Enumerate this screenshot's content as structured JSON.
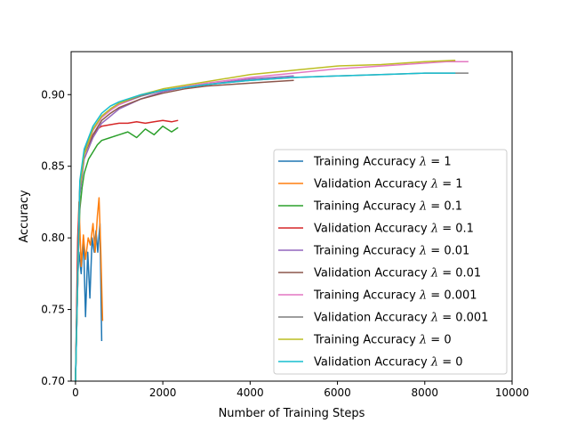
{
  "chart_data": {
    "type": "line",
    "title": "",
    "xlabel": "Number of Training Steps",
    "ylabel": "Accuracy",
    "xlim": [
      -100,
      10000
    ],
    "ylim": [
      0.7,
      0.93
    ],
    "x_ticks": [
      0,
      2000,
      4000,
      6000,
      8000,
      10000
    ],
    "x_tick_labels": [
      "0",
      "2000",
      "4000",
      "6000",
      "8000",
      "10000"
    ],
    "y_ticks": [
      0.7,
      0.75,
      0.8,
      0.85,
      0.9
    ],
    "y_tick_labels": [
      "0.70",
      "0.75",
      "0.80",
      "0.85",
      "0.90"
    ],
    "grid": false,
    "legend_position": "lower-right",
    "series": [
      {
        "label": "Training Accuracy λ = 1",
        "legend_prefix": "Training Accuracy",
        "lambda": "1",
        "color": "#1f77b4",
        "points": [
          [
            0,
            0.7
          ],
          [
            40,
            0.765
          ],
          [
            80,
            0.79
          ],
          [
            130,
            0.775
          ],
          [
            180,
            0.8
          ],
          [
            230,
            0.745
          ],
          [
            280,
            0.79
          ],
          [
            330,
            0.758
          ],
          [
            380,
            0.8
          ],
          [
            430,
            0.79
          ],
          [
            470,
            0.805
          ],
          [
            510,
            0.79
          ],
          [
            560,
            0.81
          ],
          [
            600,
            0.728
          ]
        ]
      },
      {
        "label": "Validation Accuracy λ = 1",
        "legend_prefix": "Validation Accuracy",
        "lambda": "1",
        "color": "#ff7f0e",
        "points": [
          [
            0,
            0.7
          ],
          [
            40,
            0.77
          ],
          [
            80,
            0.825
          ],
          [
            130,
            0.78
          ],
          [
            180,
            0.802
          ],
          [
            230,
            0.785
          ],
          [
            290,
            0.8
          ],
          [
            340,
            0.795
          ],
          [
            400,
            0.81
          ],
          [
            450,
            0.79
          ],
          [
            500,
            0.815
          ],
          [
            540,
            0.828
          ],
          [
            580,
            0.79
          ],
          [
            620,
            0.742
          ]
        ]
      },
      {
        "label": "Training Accuracy λ = 0.1",
        "legend_prefix": "Training Accuracy",
        "lambda": "0.1",
        "color": "#2ca02c",
        "points": [
          [
            0,
            0.7
          ],
          [
            50,
            0.78
          ],
          [
            100,
            0.82
          ],
          [
            150,
            0.835
          ],
          [
            200,
            0.845
          ],
          [
            300,
            0.855
          ],
          [
            400,
            0.86
          ],
          [
            500,
            0.865
          ],
          [
            600,
            0.868
          ],
          [
            800,
            0.87
          ],
          [
            1000,
            0.872
          ],
          [
            1200,
            0.874
          ],
          [
            1400,
            0.87
          ],
          [
            1600,
            0.876
          ],
          [
            1800,
            0.872
          ],
          [
            2000,
            0.878
          ],
          [
            2200,
            0.874
          ],
          [
            2350,
            0.877
          ]
        ]
      },
      {
        "label": "Validation Accuracy λ = 0.1",
        "legend_prefix": "Validation Accuracy",
        "lambda": "0.1",
        "color": "#d62728",
        "points": [
          [
            0,
            0.7
          ],
          [
            50,
            0.8
          ],
          [
            100,
            0.835
          ],
          [
            150,
            0.85
          ],
          [
            200,
            0.858
          ],
          [
            300,
            0.866
          ],
          [
            400,
            0.872
          ],
          [
            500,
            0.876
          ],
          [
            600,
            0.878
          ],
          [
            800,
            0.879
          ],
          [
            1000,
            0.88
          ],
          [
            1200,
            0.88
          ],
          [
            1400,
            0.881
          ],
          [
            1600,
            0.88
          ],
          [
            1800,
            0.881
          ],
          [
            2000,
            0.882
          ],
          [
            2200,
            0.881
          ],
          [
            2350,
            0.882
          ]
        ]
      },
      {
        "label": "Training Accuracy λ = 0.01",
        "legend_prefix": "Training Accuracy",
        "lambda": "0.01",
        "color": "#9467bd",
        "points": [
          [
            0,
            0.7
          ],
          [
            100,
            0.83
          ],
          [
            200,
            0.855
          ],
          [
            400,
            0.87
          ],
          [
            600,
            0.88
          ],
          [
            800,
            0.885
          ],
          [
            1000,
            0.89
          ],
          [
            1500,
            0.897
          ],
          [
            2000,
            0.902
          ],
          [
            2500,
            0.905
          ],
          [
            3000,
            0.907
          ],
          [
            3500,
            0.909
          ],
          [
            4000,
            0.911
          ],
          [
            4500,
            0.912
          ],
          [
            5000,
            0.913
          ]
        ]
      },
      {
        "label": "Validation Accuracy λ = 0.01",
        "legend_prefix": "Validation Accuracy",
        "lambda": "0.01",
        "color": "#8c564b",
        "points": [
          [
            0,
            0.7
          ],
          [
            100,
            0.835
          ],
          [
            200,
            0.858
          ],
          [
            400,
            0.872
          ],
          [
            600,
            0.882
          ],
          [
            800,
            0.887
          ],
          [
            1000,
            0.891
          ],
          [
            1500,
            0.897
          ],
          [
            2000,
            0.901
          ],
          [
            2500,
            0.904
          ],
          [
            3000,
            0.906
          ],
          [
            3500,
            0.907
          ],
          [
            4000,
            0.908
          ],
          [
            4500,
            0.909
          ],
          [
            5000,
            0.91
          ]
        ]
      },
      {
        "label": "Training Accuracy λ = 0.001",
        "legend_prefix": "Training Accuracy",
        "lambda": "0.001",
        "color": "#e377c2",
        "points": [
          [
            0,
            0.7
          ],
          [
            100,
            0.835
          ],
          [
            200,
            0.858
          ],
          [
            400,
            0.875
          ],
          [
            600,
            0.884
          ],
          [
            800,
            0.889
          ],
          [
            1000,
            0.893
          ],
          [
            1500,
            0.899
          ],
          [
            2000,
            0.903
          ],
          [
            3000,
            0.908
          ],
          [
            4000,
            0.912
          ],
          [
            5000,
            0.915
          ],
          [
            6000,
            0.918
          ],
          [
            7000,
            0.92
          ],
          [
            8000,
            0.922
          ],
          [
            8500,
            0.923
          ],
          [
            9000,
            0.923
          ]
        ]
      },
      {
        "label": "Validation Accuracy λ = 0.001",
        "legend_prefix": "Validation Accuracy",
        "lambda": "0.001",
        "color": "#7f7f7f",
        "points": [
          [
            0,
            0.7
          ],
          [
            100,
            0.838
          ],
          [
            200,
            0.86
          ],
          [
            400,
            0.876
          ],
          [
            600,
            0.885
          ],
          [
            800,
            0.89
          ],
          [
            1000,
            0.894
          ],
          [
            1500,
            0.899
          ],
          [
            2000,
            0.903
          ],
          [
            3000,
            0.907
          ],
          [
            4000,
            0.91
          ],
          [
            5000,
            0.912
          ],
          [
            6000,
            0.913
          ],
          [
            7000,
            0.914
          ],
          [
            8000,
            0.915
          ],
          [
            8500,
            0.915
          ],
          [
            9000,
            0.915
          ]
        ]
      },
      {
        "label": "Training Accuracy λ = 0",
        "legend_prefix": "Training Accuracy",
        "lambda": "0",
        "color": "#bcbd22",
        "points": [
          [
            0,
            0.7
          ],
          [
            100,
            0.835
          ],
          [
            200,
            0.858
          ],
          [
            400,
            0.876
          ],
          [
            600,
            0.885
          ],
          [
            800,
            0.89
          ],
          [
            1000,
            0.894
          ],
          [
            1500,
            0.9
          ],
          [
            2000,
            0.904
          ],
          [
            3000,
            0.909
          ],
          [
            4000,
            0.914
          ],
          [
            5000,
            0.917
          ],
          [
            6000,
            0.92
          ],
          [
            7000,
            0.921
          ],
          [
            8000,
            0.923
          ],
          [
            8700,
            0.924
          ]
        ]
      },
      {
        "label": "Validation Accuracy λ = 0",
        "legend_prefix": "Validation Accuracy",
        "lambda": "0",
        "color": "#17becf",
        "points": [
          [
            0,
            0.7
          ],
          [
            100,
            0.84
          ],
          [
            200,
            0.862
          ],
          [
            400,
            0.878
          ],
          [
            600,
            0.887
          ],
          [
            800,
            0.892
          ],
          [
            1000,
            0.895
          ],
          [
            1500,
            0.9
          ],
          [
            2000,
            0.903
          ],
          [
            3000,
            0.907
          ],
          [
            4000,
            0.91
          ],
          [
            5000,
            0.912
          ],
          [
            6000,
            0.913
          ],
          [
            7000,
            0.914
          ],
          [
            8000,
            0.915
          ],
          [
            8700,
            0.915
          ]
        ]
      }
    ]
  }
}
